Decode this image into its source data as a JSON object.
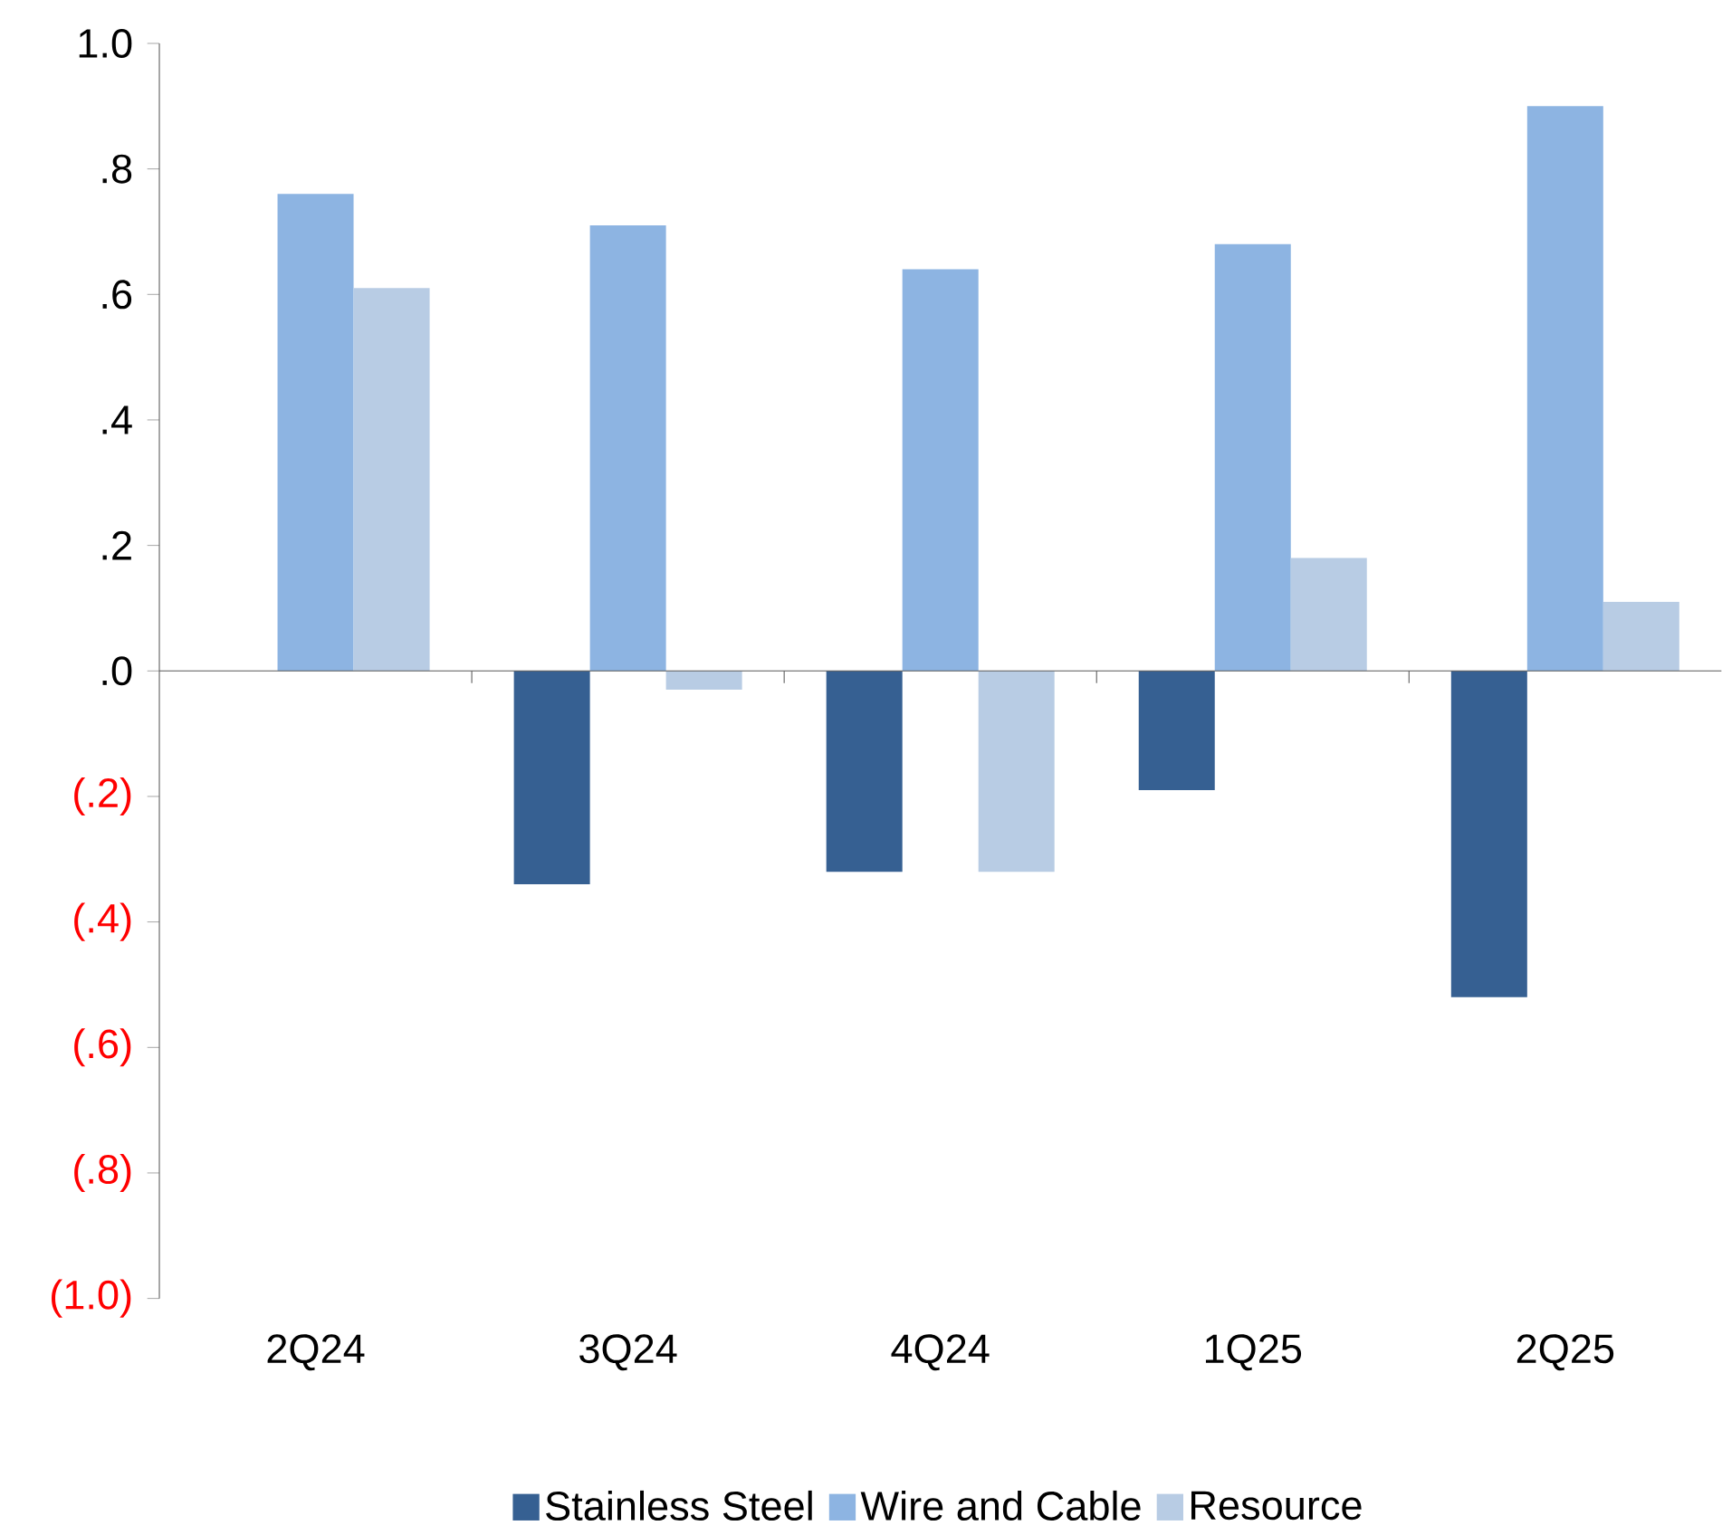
{
  "chart_data": {
    "type": "bar",
    "categories": [
      "2Q24",
      "3Q24",
      "4Q24",
      "1Q25",
      "2Q25"
    ],
    "series": [
      {
        "name": "Stainless Steel",
        "color": "#366092",
        "values": [
          null,
          -0.34,
          -0.32,
          -0.19,
          -0.52
        ]
      },
      {
        "name": "Wire and Cable",
        "color": "#8db4e2",
        "values": [
          0.76,
          0.71,
          0.64,
          0.68,
          0.9
        ]
      },
      {
        "name": "Resource",
        "color": "#b8cce4",
        "values": [
          0.61,
          -0.03,
          -0.32,
          0.18,
          0.11
        ]
      }
    ],
    "ylim": [
      -1.0,
      1.0
    ],
    "yticks": [
      {
        "value": -1.0,
        "label": "(1.0)"
      },
      {
        "value": -0.8,
        "label": "(.8)"
      },
      {
        "value": -0.6,
        "label": "(.6)"
      },
      {
        "value": -0.4,
        "label": "(.4)"
      },
      {
        "value": -0.2,
        "label": "(.2)"
      },
      {
        "value": 0.0,
        "label": ".0"
      },
      {
        "value": 0.2,
        "label": ".2"
      },
      {
        "value": 0.4,
        "label": ".4"
      },
      {
        "value": 0.6,
        "label": ".6"
      },
      {
        "value": 0.8,
        "label": ".8"
      },
      {
        "value": 1.0,
        "label": "1.0"
      }
    ],
    "legend": "bottom"
  }
}
